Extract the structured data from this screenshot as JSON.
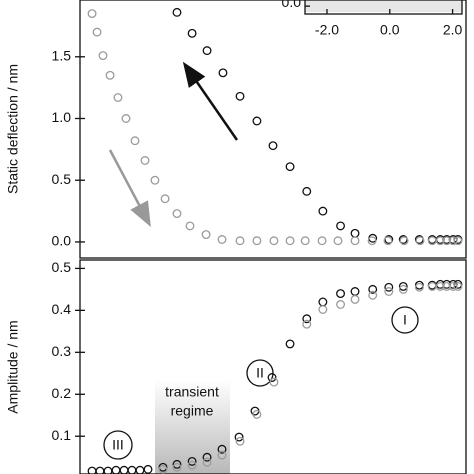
{
  "chart_data": [
    {
      "type": "scatter",
      "ylabel": "Static deflection / nm",
      "xlim": [
        0,
        24
      ],
      "ylim": [
        -0.13,
        1.96
      ],
      "yticks": [
        {
          "value": 0,
          "label": "0.0"
        },
        0.5,
        {
          "value": 1,
          "label": "1.0"
        },
        1.5
      ],
      "series": [
        {
          "color": "#111111",
          "x": [
            6.03,
            6.97,
            7.9,
            8.89,
            9.95,
            11.0,
            12.0,
            13.06,
            14.1,
            15.1,
            16.2,
            17.1,
            18.2,
            19.2,
            20.1,
            21.1,
            21.9,
            22.4,
            22.8,
            23.2,
            23.5
          ],
          "values": [
            1.86,
            1.69,
            1.55,
            1.37,
            1.18,
            0.98,
            0.78,
            0.61,
            0.41,
            0.25,
            0.13,
            0.07,
            0.03,
            0.02,
            0.02,
            0.02,
            0.02,
            0.02,
            0.02,
            0.02,
            0.02
          ]
        },
        {
          "color": "#9a9a9a",
          "x": [
            0.75,
            1.06,
            1.43,
            1.87,
            2.36,
            2.86,
            3.42,
            4.04,
            4.66,
            5.29,
            6.03,
            6.84,
            7.84,
            8.83,
            9.95,
            11.0,
            12.06,
            13.06,
            14.0,
            15.05,
            16.04,
            17.1,
            18.16,
            19.15,
            20.15,
            21.14,
            21.9,
            22.4,
            22.8,
            23.2,
            23.5
          ],
          "values": [
            1.85,
            1.7,
            1.51,
            1.35,
            1.17,
            1.0,
            0.82,
            0.66,
            0.5,
            0.35,
            0.23,
            0.13,
            0.06,
            0.02,
            0.01,
            0.01,
            0.01,
            0.01,
            0.01,
            0.01,
            0.01,
            0.01,
            0.01,
            0.01,
            0.01,
            0.01,
            0.01,
            0.01,
            0.01,
            0.01,
            0.01
          ]
        }
      ]
    },
    {
      "type": "scatter",
      "ylabel": "Amplitude / nm",
      "xlim": [
        0,
        24
      ],
      "ylim": [
        0.01,
        0.52
      ],
      "yticks": [
        0.1,
        0.2,
        0.3,
        0.4,
        0.5
      ],
      "annotations": [
        "I",
        "II",
        "III",
        "transient",
        "regime"
      ],
      "series": [
        {
          "color": "#111111",
          "x": [
            0.75,
            1.24,
            1.74,
            2.24,
            2.74,
            3.23,
            3.73,
            4.23,
            5.16,
            6.03,
            6.97,
            7.9,
            8.83,
            9.89,
            10.88,
            11.94,
            13.06,
            14.1,
            15.1,
            16.2,
            17.1,
            18.2,
            19.2,
            20.1,
            21.1,
            21.9,
            22.4,
            22.8,
            23.2,
            23.5
          ],
          "values": [
            0.017,
            0.017,
            0.017,
            0.019,
            0.019,
            0.019,
            0.019,
            0.021,
            0.026,
            0.033,
            0.04,
            0.05,
            0.069,
            0.098,
            0.16,
            0.24,
            0.32,
            0.38,
            0.42,
            0.44,
            0.445,
            0.45,
            0.455,
            0.457,
            0.46,
            0.46,
            0.462,
            0.462,
            0.462,
            0.462
          ]
        },
        {
          "color": "#9a9a9a",
          "x": [
            5.16,
            6.03,
            6.97,
            7.9,
            8.83,
            9.95,
            11.0,
            12.06,
            14.1,
            15.1,
            16.2,
            17.1,
            18.2,
            19.2,
            20.1,
            21.1,
            21.9,
            22.4,
            22.8,
            23.2,
            23.5
          ],
          "values": [
            0.021,
            0.026,
            0.031,
            0.038,
            0.055,
            0.088,
            0.152,
            0.229,
            0.367,
            0.402,
            0.414,
            0.426,
            0.436,
            0.445,
            0.45,
            0.455,
            0.457,
            0.457,
            0.457,
            0.457,
            0.457
          ]
        }
      ]
    },
    {
      "type": "inset",
      "xlim": [
        -2.7,
        2.3
      ],
      "ylim": [
        -0.3,
        1
      ],
      "xticks": [
        {
          "value": -2,
          "label": "-2.0"
        },
        {
          "value": 0,
          "label": "0.0"
        },
        {
          "value": 2,
          "label": "2.0"
        }
      ],
      "yticks": [
        {
          "value": 0,
          "label": "0.0"
        }
      ]
    }
  ]
}
